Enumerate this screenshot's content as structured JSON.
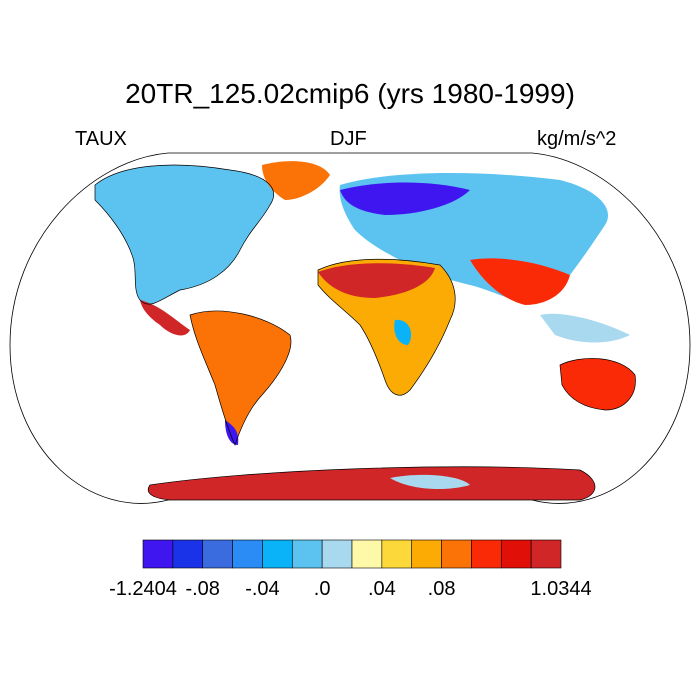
{
  "title": "20TR_125.02cmip6 (yrs 1980-1999)",
  "left_label": "TAUX",
  "center_label": "DJF",
  "right_label": "kg/m/s^2",
  "projection": "Robinson",
  "colorbar": {
    "colors": [
      "#3f16f0",
      "#1b33e8",
      "#3b6cdf",
      "#2a8cf4",
      "#0ab2f8",
      "#5cc3f1",
      "#a9d9ef",
      "#fef9a8",
      "#fcd83a",
      "#fbab04",
      "#fb7206",
      "#fb2a06",
      "#e00f08",
      "#d02628"
    ],
    "labels": [
      "-1.2404",
      "-.08",
      "-.04",
      ".0",
      ".04",
      ".08",
      "1.0344"
    ],
    "label_boundaries": [
      0,
      2,
      4,
      6,
      8,
      10,
      14
    ]
  },
  "colors": {
    "land_outline": "#000000",
    "ocean": "#ffffff"
  }
}
